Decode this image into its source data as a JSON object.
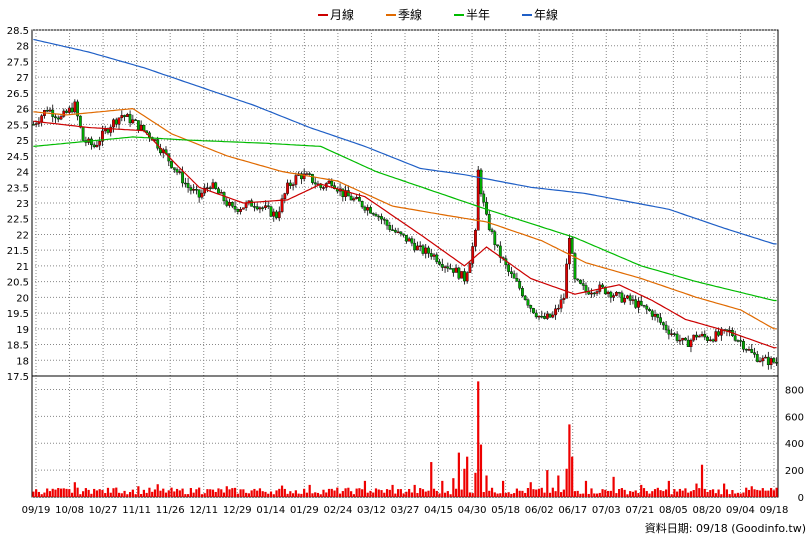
{
  "chart_data": {
    "type": "candlestick",
    "legend": [
      {
        "name": "月線",
        "color": "#cc0000"
      },
      {
        "name": "季線",
        "color": "#e06a00"
      },
      {
        "name": "半年",
        "color": "#00bb00"
      },
      {
        "name": "年線",
        "color": "#1f5fc6"
      }
    ],
    "price_axis": {
      "min": 17.5,
      "max": 28.5,
      "ticks": [
        "17.5",
        "18",
        "18.5",
        "19",
        "19.5",
        "20",
        "20.5",
        "21",
        "21.5",
        "22",
        "22.5",
        "23",
        "23.5",
        "24",
        "24.5",
        "25",
        "25.5",
        "26",
        "26.5",
        "27",
        "27.5",
        "28",
        "28.5"
      ]
    },
    "volume_axis": {
      "min": 0,
      "max": 900,
      "ticks": [
        "0",
        "200",
        "400",
        "600",
        "800"
      ]
    },
    "x_ticks": [
      "09/19",
      "10/08",
      "10/27",
      "11/11",
      "11/26",
      "12/11",
      "12/29",
      "01/14",
      "01/29",
      "02/24",
      "03/12",
      "03/27",
      "04/15",
      "04/30",
      "05/18",
      "06/02",
      "06/17",
      "07/03",
      "07/21",
      "08/05",
      "08/20",
      "09/04",
      "09/18"
    ],
    "source_label": "資料日期: 09/18 (Goodinfo.tw)",
    "price_keypoints": [
      [
        0,
        25.5
      ],
      [
        5,
        26
      ],
      [
        10,
        25.7
      ],
      [
        15,
        26.1
      ],
      [
        18,
        25
      ],
      [
        22,
        24.8
      ],
      [
        28,
        25.5
      ],
      [
        32,
        25.8
      ],
      [
        36,
        25.6
      ],
      [
        40,
        25.3
      ],
      [
        43,
        25.1
      ],
      [
        48,
        24.5
      ],
      [
        52,
        24
      ],
      [
        56,
        23.5
      ],
      [
        60,
        23.2
      ],
      [
        64,
        23.6
      ],
      [
        68,
        23.2
      ],
      [
        72,
        22.8
      ],
      [
        76,
        22.9
      ],
      [
        80,
        23
      ],
      [
        84,
        22.8
      ],
      [
        88,
        22.6
      ],
      [
        92,
        23.5
      ],
      [
        96,
        23.9
      ],
      [
        100,
        23.8
      ],
      [
        104,
        23.5
      ],
      [
        108,
        23.7
      ],
      [
        112,
        23.3
      ],
      [
        116,
        23.1
      ],
      [
        120,
        22.9
      ],
      [
        124,
        22.7
      ],
      [
        128,
        22.3
      ],
      [
        132,
        22
      ],
      [
        136,
        21.8
      ],
      [
        140,
        21.5
      ],
      [
        144,
        21.4
      ],
      [
        148,
        21.1
      ],
      [
        152,
        20.9
      ],
      [
        156,
        20.6
      ],
      [
        158,
        21.2
      ],
      [
        160,
        22
      ],
      [
        161,
        24
      ],
      [
        162,
        23.4
      ],
      [
        164,
        22.5
      ],
      [
        168,
        21.5
      ],
      [
        172,
        20.8
      ],
      [
        176,
        20.3
      ],
      [
        180,
        19.7
      ],
      [
        184,
        19.3
      ],
      [
        188,
        19.4
      ],
      [
        192,
        20
      ],
      [
        194,
        22
      ],
      [
        196,
        20.5
      ],
      [
        200,
        20.2
      ],
      [
        204,
        20.3
      ],
      [
        208,
        20.2
      ],
      [
        212,
        20
      ],
      [
        216,
        19.9
      ],
      [
        220,
        19.7
      ],
      [
        224,
        19.5
      ],
      [
        228,
        19.1
      ],
      [
        232,
        18.8
      ],
      [
        236,
        18.5
      ],
      [
        240,
        18.8
      ],
      [
        244,
        18.7
      ],
      [
        248,
        18.8
      ],
      [
        252,
        18.9
      ],
      [
        256,
        18.6
      ],
      [
        260,
        18.2
      ],
      [
        264,
        18
      ],
      [
        268,
        17.95
      ]
    ],
    "monthly_ma_keypoints": [
      [
        0,
        25.6
      ],
      [
        20,
        25.4
      ],
      [
        40,
        25.3
      ],
      [
        52,
        24.2
      ],
      [
        60,
        23.5
      ],
      [
        76,
        23
      ],
      [
        92,
        23.1
      ],
      [
        104,
        23.6
      ],
      [
        120,
        23.2
      ],
      [
        140,
        22
      ],
      [
        156,
        21
      ],
      [
        164,
        21.6
      ],
      [
        180,
        20.6
      ],
      [
        196,
        20.1
      ],
      [
        212,
        20.4
      ],
      [
        224,
        19.9
      ],
      [
        236,
        19.3
      ],
      [
        252,
        18.9
      ],
      [
        268,
        18.4
      ]
    ],
    "quarterly_ma_keypoints": [
      [
        0,
        25.9
      ],
      [
        12,
        25.8
      ],
      [
        36,
        26
      ],
      [
        50,
        25.2
      ],
      [
        70,
        24.5
      ],
      [
        90,
        24
      ],
      [
        110,
        23.7
      ],
      [
        130,
        22.9
      ],
      [
        150,
        22.6
      ],
      [
        164,
        22.4
      ],
      [
        184,
        21.8
      ],
      [
        200,
        21.1
      ],
      [
        220,
        20.6
      ],
      [
        240,
        20
      ],
      [
        256,
        19.6
      ],
      [
        268,
        19
      ]
    ],
    "half_year_ma_keypoints": [
      [
        0,
        24.8
      ],
      [
        12,
        24.9
      ],
      [
        36,
        25.1
      ],
      [
        56,
        25
      ],
      [
        84,
        24.9
      ],
      [
        104,
        24.8
      ],
      [
        124,
        24
      ],
      [
        144,
        23.4
      ],
      [
        164,
        22.8
      ],
      [
        196,
        21.9
      ],
      [
        220,
        21
      ],
      [
        240,
        20.5
      ],
      [
        268,
        19.9
      ]
    ],
    "yearly_ma_keypoints": [
      [
        0,
        28.2
      ],
      [
        20,
        27.8
      ],
      [
        40,
        27.3
      ],
      [
        60,
        26.7
      ],
      [
        80,
        26.1
      ],
      [
        100,
        25.4
      ],
      [
        120,
        24.8
      ],
      [
        140,
        24.1
      ],
      [
        156,
        23.9
      ],
      [
        180,
        23.5
      ],
      [
        200,
        23.3
      ],
      [
        230,
        22.8
      ],
      [
        250,
        22.2
      ],
      [
        268,
        21.7
      ]
    ],
    "volume_spikes": [
      [
        0,
        40
      ],
      [
        8,
        55
      ],
      [
        15,
        110
      ],
      [
        22,
        60
      ],
      [
        30,
        70
      ],
      [
        38,
        80
      ],
      [
        45,
        95
      ],
      [
        52,
        60
      ],
      [
        60,
        70
      ],
      [
        70,
        80
      ],
      [
        80,
        60
      ],
      [
        90,
        85
      ],
      [
        100,
        90
      ],
      [
        110,
        70
      ],
      [
        120,
        120
      ],
      [
        130,
        90
      ],
      [
        138,
        90
      ],
      [
        144,
        260
      ],
      [
        148,
        120
      ],
      [
        152,
        140
      ],
      [
        154,
        330
      ],
      [
        156,
        210
      ],
      [
        157,
        300
      ],
      [
        160,
        180
      ],
      [
        161,
        860
      ],
      [
        162,
        390
      ],
      [
        164,
        160
      ],
      [
        170,
        120
      ],
      [
        180,
        110
      ],
      [
        186,
        200
      ],
      [
        190,
        160
      ],
      [
        193,
        210
      ],
      [
        194,
        540
      ],
      [
        195,
        300
      ],
      [
        200,
        120
      ],
      [
        210,
        150
      ],
      [
        220,
        90
      ],
      [
        230,
        120
      ],
      [
        240,
        100
      ],
      [
        242,
        240
      ],
      [
        250,
        100
      ],
      [
        260,
        80
      ],
      [
        268,
        50
      ]
    ]
  }
}
